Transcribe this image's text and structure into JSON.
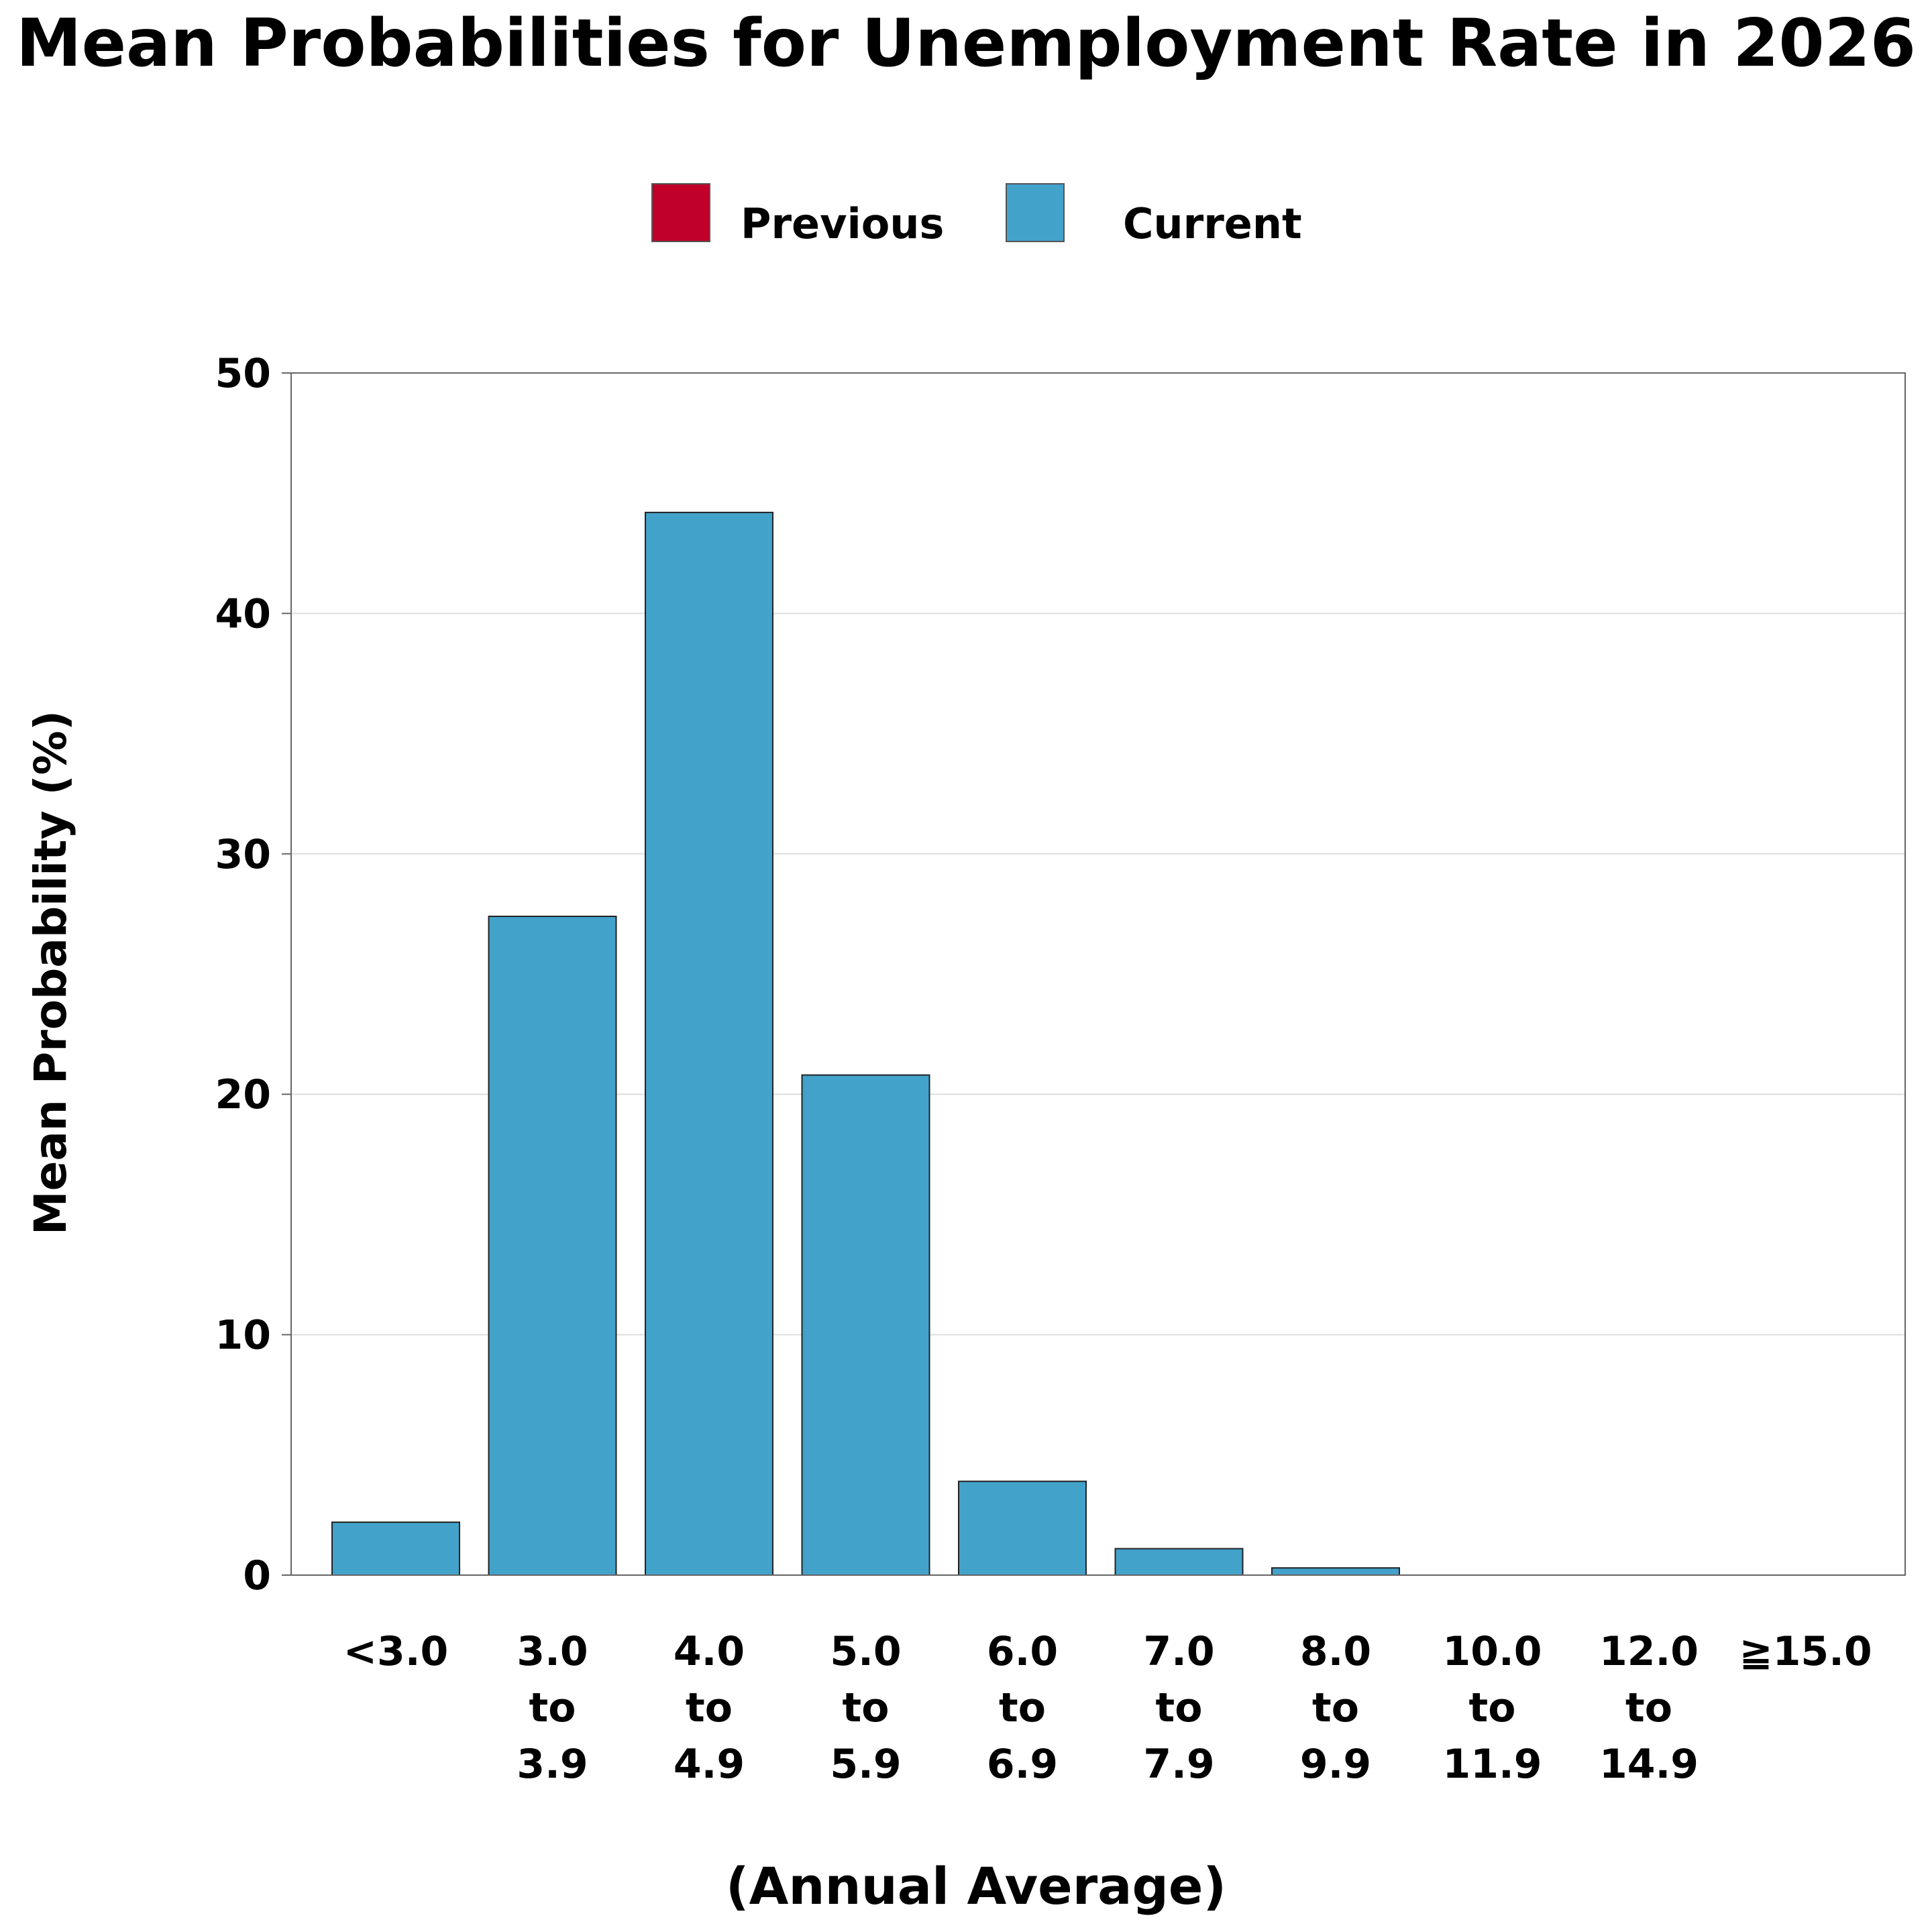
{
  "chart_data": {
    "type": "bar",
    "title": "Mean Probabilities for Unemployment Rate in 2026",
    "ylabel": "Mean Probability (%)",
    "xlabel": "(Annual Average)",
    "ylim": [
      0,
      50
    ],
    "yticks": [
      "0",
      "10",
      "20",
      "30",
      "40",
      "50"
    ],
    "grid": true,
    "legend_position": "top-center",
    "categories": [
      [
        "<3.0"
      ],
      [
        "3.0",
        "to",
        "3.9"
      ],
      [
        "4.0",
        "to",
        "4.9"
      ],
      [
        "5.0",
        "to",
        "5.9"
      ],
      [
        "6.0",
        "to",
        "6.9"
      ],
      [
        "7.0",
        "to",
        "7.9"
      ],
      [
        "8.0",
        "to",
        "9.9"
      ],
      [
        "10.0",
        "to",
        "11.9"
      ],
      [
        "12.0",
        "to",
        "14.9"
      ],
      [
        "≧15.0"
      ]
    ],
    "series": [
      {
        "name": "Previous",
        "color": "#c0002a",
        "values": [
          null,
          null,
          null,
          null,
          null,
          null,
          null,
          null,
          null,
          null
        ]
      },
      {
        "name": "Current",
        "color": "#43a2ca",
        "values": [
          2.2,
          27.4,
          44.2,
          20.8,
          3.9,
          1.1,
          0.3,
          0.0,
          0.0,
          0.0
        ]
      }
    ]
  }
}
